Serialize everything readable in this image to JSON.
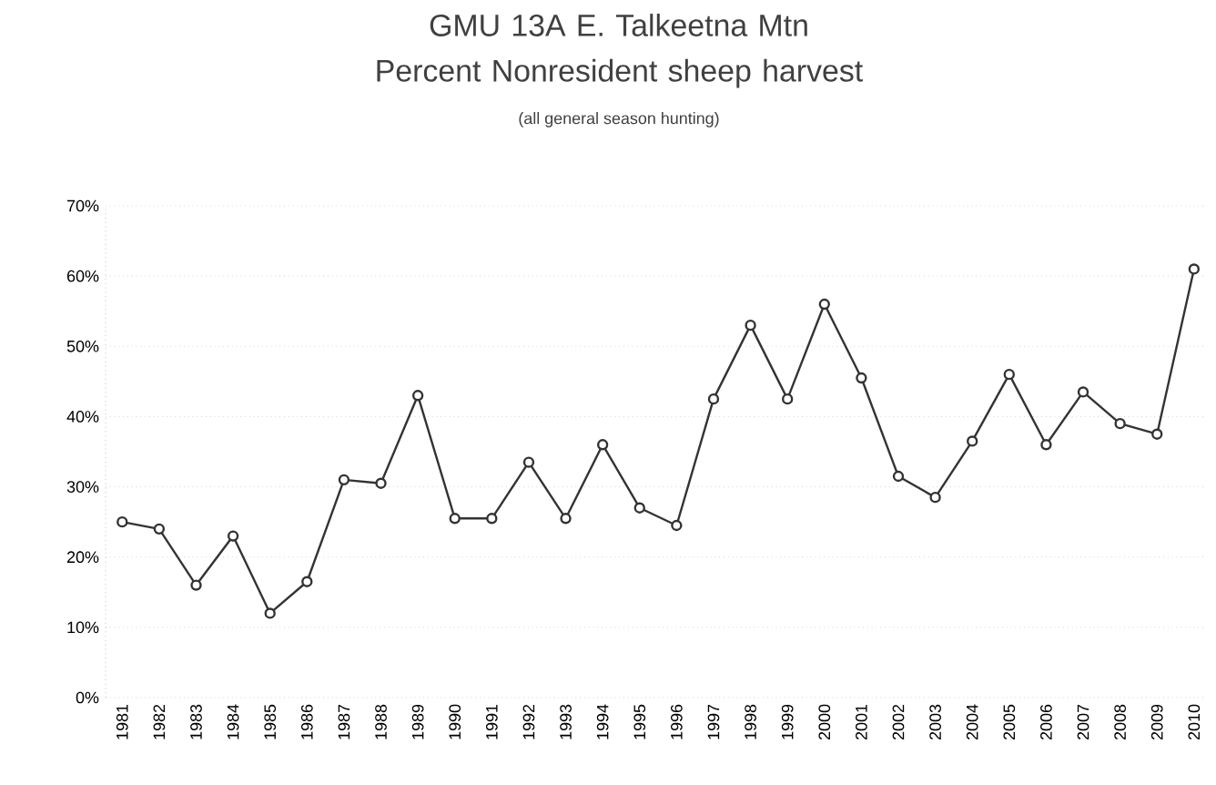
{
  "chart_data": {
    "type": "line",
    "title": "GMU 13A E. Talkeetna Mtn Percent Nonresident sheep harvest",
    "subtitle": "(all general season hunting)",
    "categories": [
      "1981",
      "1982",
      "1983",
      "1984",
      "1985",
      "1986",
      "1987",
      "1988",
      "1989",
      "1990",
      "1991",
      "1992",
      "1993",
      "1994",
      "1995",
      "1996",
      "1997",
      "1998",
      "1999",
      "2000",
      "2001",
      "2002",
      "2003",
      "2004",
      "2005",
      "2006",
      "2007",
      "2008",
      "2009",
      "2010"
    ],
    "series": [
      {
        "color": "#333333",
        "values": [
          25,
          24,
          16,
          23,
          12,
          16.5,
          31,
          30.5,
          43,
          25.5,
          25.5,
          33.5,
          25.5,
          36,
          27,
          24.5,
          42.5,
          53,
          42.5,
          56,
          45.5,
          31.5,
          28.5,
          36.5,
          46,
          36,
          43.5,
          39,
          37.5,
          61
        ]
      }
    ],
    "ylim": [
      0,
      70
    ],
    "yticks": [
      {
        "value": 0,
        "label": "0%"
      },
      {
        "value": 10,
        "label": "10%"
      },
      {
        "value": 20,
        "label": "20%"
      },
      {
        "value": 30,
        "label": "30%"
      },
      {
        "value": 40,
        "label": "40%"
      },
      {
        "value": 50,
        "label": "50%"
      },
      {
        "value": 60,
        "label": "60%"
      },
      {
        "value": 70,
        "label": "70%"
      }
    ],
    "grid": "y",
    "marker": "circle",
    "line_style": "solid"
  }
}
